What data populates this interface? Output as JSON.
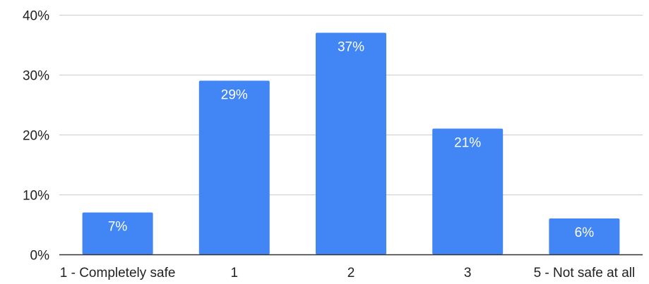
{
  "chart_data": {
    "type": "bar",
    "categories": [
      "1 - Completely safe",
      "1",
      "2",
      "3",
      "5 - Not safe at all"
    ],
    "values": [
      7,
      29,
      37,
      21,
      6
    ],
    "data_labels": [
      "7%",
      "29%",
      "37%",
      "21%",
      "6%"
    ],
    "title": "",
    "xlabel": "",
    "ylabel": "",
    "ylim": [
      0,
      40
    ],
    "yticks": [
      0,
      10,
      20,
      30,
      40
    ],
    "ytick_labels": [
      "0%",
      "10%",
      "20%",
      "30%",
      "40%"
    ],
    "grid": true,
    "legend": "none",
    "colors": {
      "bar": "#4285f4",
      "grid": "#cccccc",
      "axis": "#333333",
      "text": "#222222",
      "label": "#ffffff"
    }
  }
}
